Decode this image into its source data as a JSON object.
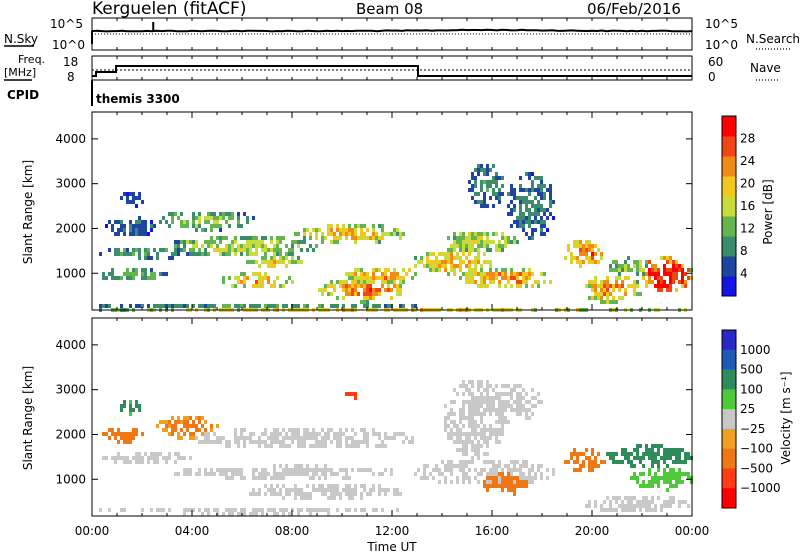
{
  "header": {
    "station": "Kerguelen (fitACF)",
    "beam": "Beam 08",
    "date": "06/Feb/2016"
  },
  "noise_panel": {
    "left_label": "N.Sky",
    "left_ticks": [
      "10^5",
      "10^0"
    ],
    "right_ticks": [
      "10^5",
      "10^0"
    ],
    "right_label": "N.Search"
  },
  "freq_panel": {
    "left_label_top": "Freq.",
    "left_label_bottom": "[MHz]",
    "left_ticks": [
      "18",
      "8"
    ],
    "right_ticks": [
      "60",
      "0"
    ],
    "right_label": "Nave",
    "cpid_label": "CPID",
    "cpid_value": "themis 3300"
  },
  "colors": {
    "power_scale": [
      "#1414e6",
      "#1e46a0",
      "#3c8c6e",
      "#64b450",
      "#c8dc3c",
      "#f0c81e",
      "#f08c14",
      "#f04614",
      "#ff0000"
    ],
    "velocity_scale": [
      "#2828c8",
      "#1e5ab4",
      "#2e8c5a",
      "#50c83c",
      "#c8c8c8",
      "#c8c8c8",
      "#f0a01e",
      "#f07814",
      "#ff3c14",
      "#ff0000"
    ]
  },
  "chart_data": [
    {
      "type": "heatmap",
      "name": "power",
      "ylabel": "Slant Range [km]",
      "yticks": [
        "4000",
        "3000",
        "2000",
        "1000"
      ],
      "colorbar_label": "Power [dB]",
      "colorbar_ticks": [
        "28",
        "24",
        "20",
        "16",
        "12",
        "8",
        "4"
      ],
      "color_range": [
        0,
        32
      ],
      "ylim": [
        180,
        4600
      ],
      "x_hours": [
        0,
        24
      ],
      "blobs": [
        {
          "t0": 0.0,
          "t1": 24.0,
          "r0": 200,
          "r1": 260,
          "v": 18
        },
        {
          "t0": 0.0,
          "t1": 13.0,
          "r0": 260,
          "r1": 380,
          "v": 9
        },
        {
          "t0": 0.2,
          "t1": 3.0,
          "r0": 850,
          "r1": 1150,
          "v": 11
        },
        {
          "t0": 0.2,
          "t1": 4.0,
          "r0": 1350,
          "r1": 1650,
          "v": 10
        },
        {
          "t0": 0.5,
          "t1": 2.5,
          "r0": 1850,
          "r1": 2300,
          "v": 7
        },
        {
          "t0": 1.0,
          "t1": 2.0,
          "r0": 2500,
          "r1": 2900,
          "v": 5
        },
        {
          "t0": 2.5,
          "t1": 6.5,
          "r0": 2000,
          "r1": 2450,
          "v": 13
        },
        {
          "t0": 3.0,
          "t1": 9.0,
          "r0": 1400,
          "r1": 1900,
          "v": 15
        },
        {
          "t0": 5.0,
          "t1": 8.0,
          "r0": 700,
          "r1": 1050,
          "v": 20
        },
        {
          "t0": 6.0,
          "t1": 8.5,
          "r0": 1150,
          "r1": 1450,
          "v": 17
        },
        {
          "t0": 8.0,
          "t1": 12.5,
          "r0": 1700,
          "r1": 2150,
          "v": 19
        },
        {
          "t0": 9.0,
          "t1": 12.5,
          "r0": 400,
          "r1": 950,
          "v": 23
        },
        {
          "t0": 10.0,
          "t1": 13.0,
          "r0": 800,
          "r1": 1200,
          "v": 21
        },
        {
          "t0": 12.8,
          "t1": 16.0,
          "r0": 1000,
          "r1": 1600,
          "v": 20
        },
        {
          "t0": 14.0,
          "t1": 17.0,
          "r0": 1500,
          "r1": 2000,
          "v": 16
        },
        {
          "t0": 14.5,
          "t1": 18.5,
          "r0": 700,
          "r1": 1150,
          "v": 22
        },
        {
          "t0": 15.0,
          "t1": 16.5,
          "r0": 2500,
          "r1": 3500,
          "v": 9
        },
        {
          "t0": 16.5,
          "t1": 18.5,
          "r0": 1800,
          "r1": 3300,
          "v": 8
        },
        {
          "t0": 18.8,
          "t1": 20.5,
          "r0": 1200,
          "r1": 1800,
          "v": 24
        },
        {
          "t0": 19.5,
          "t1": 22.0,
          "r0": 380,
          "r1": 1000,
          "v": 22
        },
        {
          "t0": 20.5,
          "t1": 22.5,
          "r0": 1000,
          "r1": 1400,
          "v": 14
        },
        {
          "t0": 21.8,
          "t1": 24.0,
          "r0": 600,
          "r1": 1400,
          "v": 30
        }
      ]
    },
    {
      "type": "heatmap",
      "name": "velocity",
      "ylabel": "Slant Range [km]",
      "yticks": [
        "4000",
        "3000",
        "2000",
        "1000"
      ],
      "colorbar_label": "Velocity [m s⁻¹]",
      "colorbar_ticks": [
        "1000",
        "500",
        "100",
        "25",
        "−25",
        "−100",
        "−500",
        "−1000"
      ],
      "color_range": [
        -1000,
        1000
      ],
      "ylim": [
        180,
        4600
      ],
      "x_hours": [
        0,
        24
      ],
      "blobs": [
        {
          "t0": 0.0,
          "t1": 13.0,
          "r0": 260,
          "r1": 420,
          "v": 0
        },
        {
          "t0": 0.2,
          "t1": 4.0,
          "r0": 1350,
          "r1": 1650,
          "v": 0
        },
        {
          "t0": 0.3,
          "t1": 2.0,
          "r0": 1850,
          "r1": 2200,
          "v": -200
        },
        {
          "t0": 1.0,
          "t1": 2.0,
          "r0": 2500,
          "r1": 2800,
          "v": 150
        },
        {
          "t0": 2.5,
          "t1": 5.0,
          "r0": 1950,
          "r1": 2450,
          "v": -120
        },
        {
          "t0": 4.0,
          "t1": 13.0,
          "r0": 1700,
          "r1": 2200,
          "v": 0
        },
        {
          "t0": 3.0,
          "t1": 12.5,
          "r0": 1050,
          "r1": 1350,
          "v": 0
        },
        {
          "t0": 6.0,
          "t1": 12.5,
          "r0": 600,
          "r1": 950,
          "v": 0
        },
        {
          "t0": 12.8,
          "t1": 18.5,
          "r0": 900,
          "r1": 1500,
          "v": 0
        },
        {
          "t0": 14.0,
          "t1": 16.5,
          "r0": 1500,
          "r1": 3300,
          "v": 0
        },
        {
          "t0": 15.0,
          "t1": 18.0,
          "r0": 2300,
          "r1": 3200,
          "v": 0
        },
        {
          "t0": 15.5,
          "t1": 17.5,
          "r0": 700,
          "r1": 1200,
          "v": -250
        },
        {
          "t0": 18.8,
          "t1": 20.5,
          "r0": 1200,
          "r1": 1750,
          "v": -180
        },
        {
          "t0": 20.5,
          "t1": 24.0,
          "r0": 1300,
          "r1": 1800,
          "v": 300
        },
        {
          "t0": 21.5,
          "t1": 24.0,
          "r0": 800,
          "r1": 1300,
          "v": 80
        },
        {
          "t0": 19.5,
          "t1": 24.0,
          "r0": 300,
          "r1": 700,
          "v": 0
        },
        {
          "t0": 10.0,
          "t1": 10.7,
          "r0": 2850,
          "r1": 3050,
          "v": -800
        }
      ]
    }
  ],
  "xaxis": {
    "ticks": [
      "00:00",
      "04:00",
      "08:00",
      "12:00",
      "16:00",
      "20:00",
      "00:00"
    ],
    "label": "Time UT"
  }
}
